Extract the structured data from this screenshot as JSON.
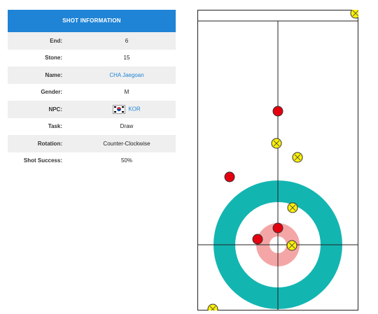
{
  "panel": {
    "title": "SHOT INFORMATION",
    "rows": [
      {
        "label": "End:",
        "value": "6"
      },
      {
        "label": "Stone:",
        "value": "15"
      },
      {
        "label": "Name:",
        "value": "CHA Jaegoan"
      },
      {
        "label": "Gender:",
        "value": "M"
      },
      {
        "label": "NPC:",
        "value": "KOR"
      },
      {
        "label": "Task:",
        "value": "Draw"
      },
      {
        "label": "Rotation:",
        "value": "Counter-Clockwise"
      },
      {
        "label": "Shot Success:",
        "value": "50%"
      }
    ]
  },
  "sheet": {
    "colors": {
      "outer_ring": "#13b5b1",
      "four_foot": "#f4a6a6",
      "button": "#ffffff",
      "red_stone": "#e4000f",
      "yellow_stone": "#fff200"
    },
    "stones": [
      {
        "color": "yellow",
        "icon": "yellow-stone-icon"
      },
      {
        "color": "red",
        "icon": "red-stone-icon"
      },
      {
        "color": "yellow",
        "icon": "yellow-stone-icon"
      },
      {
        "color": "yellow",
        "icon": "yellow-stone-icon"
      },
      {
        "color": "red",
        "icon": "red-stone-icon"
      },
      {
        "color": "yellow",
        "icon": "yellow-stone-icon"
      },
      {
        "color": "red",
        "icon": "red-stone-icon"
      },
      {
        "color": "red",
        "icon": "red-stone-icon"
      },
      {
        "color": "yellow",
        "icon": "yellow-stone-icon"
      },
      {
        "color": "yellow",
        "icon": "yellow-stone-icon"
      }
    ]
  }
}
